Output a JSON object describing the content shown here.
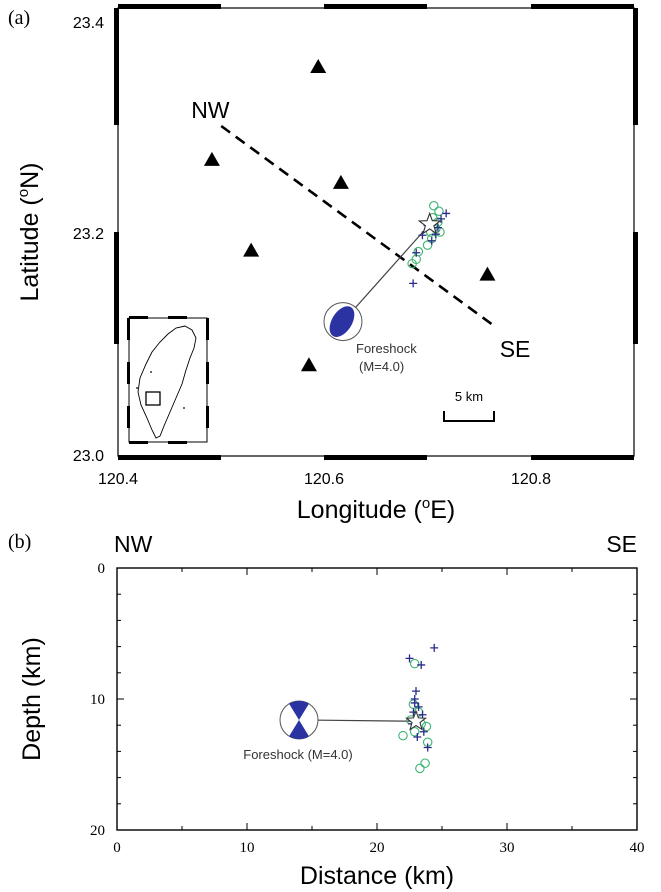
{
  "chart_data": [
    {
      "type": "scatter",
      "panel_label": "(a)",
      "xlabel": "Longitude (°E)",
      "ylabel": "Latitude (°N)",
      "xlabel_parts": {
        "pre": "Longitude (",
        "sup": "o",
        "post": "E)"
      },
      "ylabel_parts": {
        "pre": "Latitude (",
        "sup": "o",
        "post": "N)"
      },
      "xlim": [
        120.4,
        120.9
      ],
      "ylim": [
        23.0,
        23.41
      ],
      "x_ticks": [
        "120.4",
        "120.6",
        "120.8"
      ],
      "y_ticks": [
        "23.0",
        "23.2",
        "23.4"
      ],
      "profile_line": {
        "start": [
          120.5,
          23.302
        ],
        "end": [
          120.766,
          23.118
        ],
        "start_label": "NW",
        "end_label": "SE"
      },
      "stations": [
        [
          120.594,
          23.356
        ],
        [
          120.491,
          23.271
        ],
        [
          120.616,
          23.25
        ],
        [
          120.529,
          23.188
        ],
        [
          120.758,
          23.166
        ],
        [
          120.585,
          23.083
        ]
      ],
      "mainshock": [
        120.702,
        23.212
      ],
      "aftershocks_circles": [
        [
          120.706,
          23.229
        ],
        [
          120.711,
          23.224
        ],
        [
          120.705,
          23.218
        ],
        [
          120.71,
          23.214
        ],
        [
          120.708,
          23.208
        ],
        [
          120.703,
          23.205
        ],
        [
          120.712,
          23.205
        ],
        [
          120.704,
          23.199
        ],
        [
          120.7,
          23.193
        ],
        [
          120.691,
          23.187
        ],
        [
          120.689,
          23.18
        ],
        [
          120.685,
          23.176
        ],
        [
          120.706,
          23.212
        ]
      ],
      "aftershocks_crosses": [
        [
          120.718,
          23.222
        ],
        [
          120.713,
          23.217
        ],
        [
          120.7,
          23.211
        ],
        [
          120.708,
          23.203
        ],
        [
          120.695,
          23.202
        ],
        [
          120.704,
          23.197
        ],
        [
          120.689,
          23.186
        ],
        [
          120.686,
          23.158
        ],
        [
          120.71,
          23.209
        ]
      ],
      "foreshock": {
        "lon": 120.614,
        "lat": 23.12,
        "beachball_at": [
          120.618,
          23.123
        ],
        "label": "Foreshock",
        "magnitude_label": "(M=4.0)"
      },
      "scale_bar": {
        "label": "5 km",
        "length_km": 5
      },
      "inset": "Taiwan location map",
      "colors": {
        "circle": "#3cb371",
        "cross": "#2a2a8c",
        "beachball": "#2b33a3"
      }
    },
    {
      "type": "scatter",
      "panel_label": "(b)",
      "xlabel": "Distance (km)",
      "ylabel": "Depth (km)",
      "xlim": [
        0,
        40
      ],
      "ylim": [
        0,
        20
      ],
      "y_inverted": true,
      "x_ticks": [
        "0",
        "10",
        "20",
        "30",
        "40"
      ],
      "y_ticks": [
        "0",
        "10",
        "20"
      ],
      "left_label": "NW",
      "right_label": "SE",
      "mainshock": [
        23.0,
        11.7
      ],
      "aftershocks_circles": [
        [
          22.9,
          7.3
        ],
        [
          22.8,
          10.4
        ],
        [
          23.2,
          11.0
        ],
        [
          22.6,
          11.6
        ],
        [
          23.4,
          11.9
        ],
        [
          23.8,
          12.1
        ],
        [
          22.9,
          12.5
        ],
        [
          22.0,
          12.8
        ],
        [
          23.9,
          13.3
        ],
        [
          23.7,
          14.9
        ],
        [
          23.3,
          15.3
        ]
      ],
      "aftershocks_crosses": [
        [
          24.4,
          6.1
        ],
        [
          22.5,
          6.9
        ],
        [
          23.4,
          7.4
        ],
        [
          23.0,
          9.4
        ],
        [
          22.9,
          10.0
        ],
        [
          23.2,
          10.6
        ],
        [
          23.5,
          11.2
        ],
        [
          22.8,
          11.0
        ],
        [
          23.6,
          12.5
        ],
        [
          23.1,
          12.9
        ],
        [
          22.7,
          11.9
        ],
        [
          23.9,
          13.7
        ],
        [
          22.9,
          10.3
        ]
      ],
      "foreshock": {
        "distance": 14.0,
        "depth": 11.6,
        "label": "Foreshock (M=4.0)"
      },
      "colors": {
        "circle": "#3cb371",
        "cross": "#2a2a8c",
        "beachball": "#2b33a3"
      }
    }
  ]
}
